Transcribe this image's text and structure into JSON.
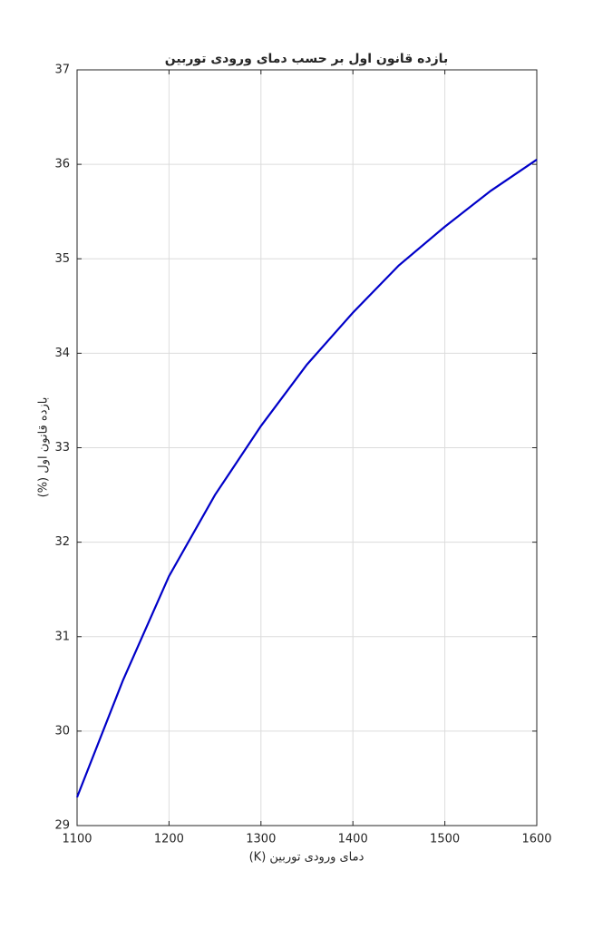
{
  "chart_data": {
    "type": "line",
    "title": "بازده قانون اول بر حسب دمای ورودی توربین",
    "x_label": "دمای ورودی توربین (K)",
    "y_label": "بازده قانون اول (%)",
    "x": [
      1100,
      1150,
      1200,
      1250,
      1300,
      1350,
      1400,
      1450,
      1500,
      1550,
      1600
    ],
    "series": [
      {
        "color": "#0000c8",
        "values": [
          29.3,
          30.54,
          31.64,
          32.5,
          33.23,
          33.88,
          34.43,
          34.93,
          35.34,
          35.72,
          36.05
        ]
      }
    ],
    "xlim": [
      1100,
      1600
    ],
    "xticks": [
      1100,
      1200,
      1300,
      1400,
      1500,
      1600
    ],
    "ylim": [
      29,
      37
    ],
    "yticks": [
      29,
      30,
      31,
      32,
      33,
      34,
      35,
      36,
      37
    ],
    "grid": true
  }
}
